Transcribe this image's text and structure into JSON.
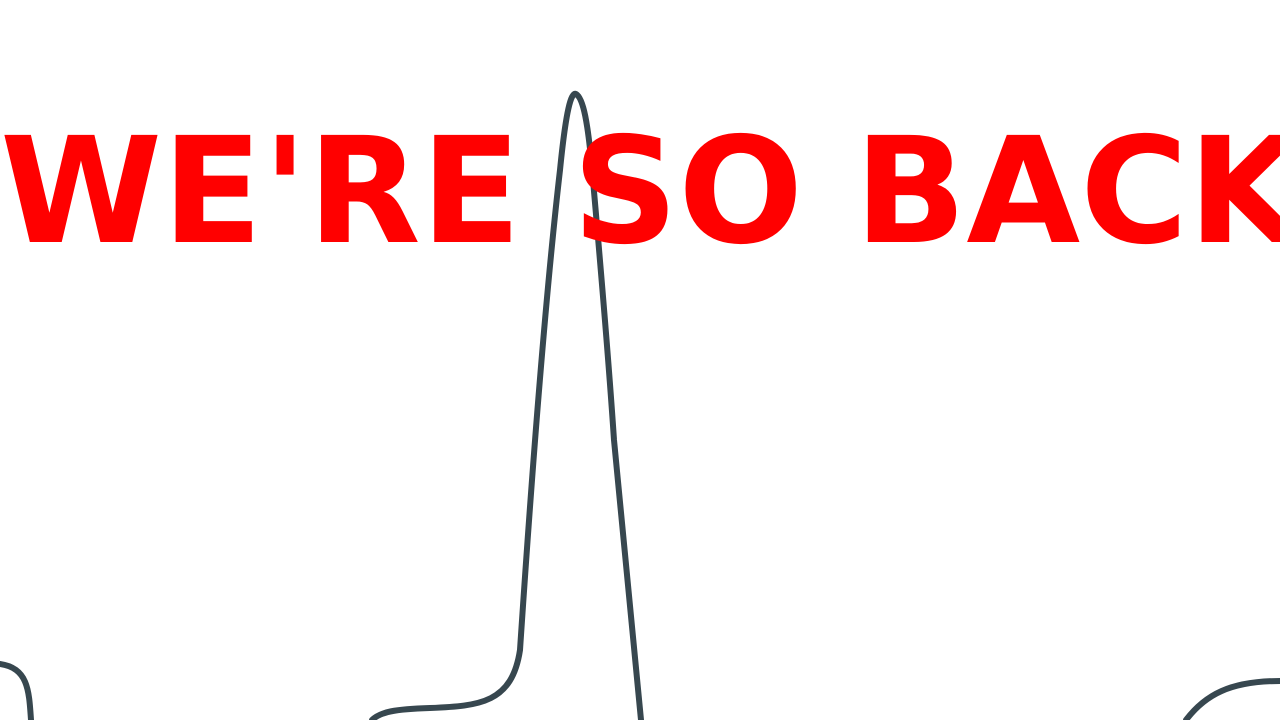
{
  "headline": {
    "text": "WE'RE SO BACK",
    "color": "#ff0000"
  },
  "spike_line": {
    "color": "#37474f"
  }
}
